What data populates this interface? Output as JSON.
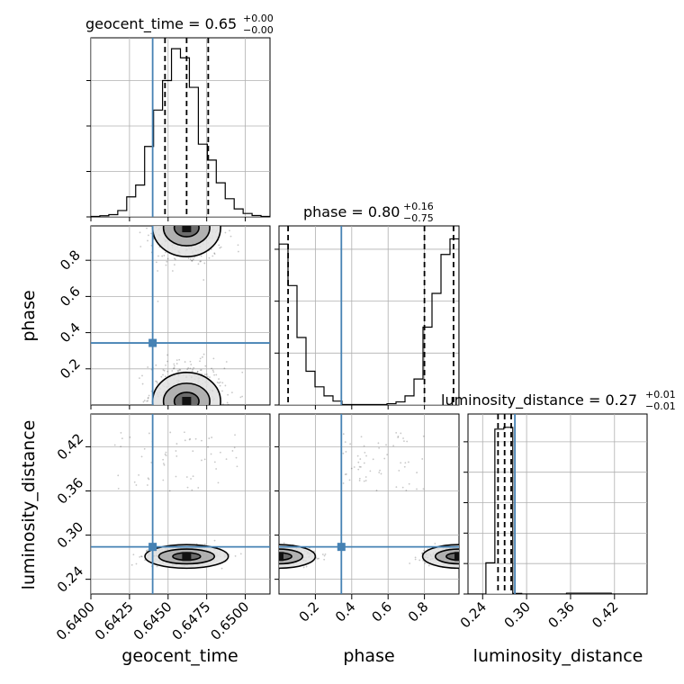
{
  "chart_data": {
    "type": "corner",
    "params": [
      "geocent_time",
      "phase",
      "luminosity_distance"
    ],
    "axis_labels": {
      "geocent_time": "geocent_time",
      "phase": "phase",
      "luminosity_distance": "luminosity_distance"
    },
    "titles": [
      {
        "param": "geocent_time",
        "text": "geocent_time = 0.65",
        "plus": "+0.00",
        "minus": "−0.00"
      },
      {
        "param": "phase",
        "text": "phase = 0.80",
        "plus": "+0.16",
        "minus": "−0.75"
      },
      {
        "param": "luminosity_distance",
        "text": "luminosity_distance = 0.27",
        "plus": "+0.01",
        "minus": "−0.01"
      }
    ],
    "ranges": {
      "geocent_time": [
        0.64,
        0.6516
      ],
      "phase": [
        0.0,
        0.99
      ],
      "luminosity_distance": [
        0.22,
        0.4645
      ]
    },
    "ticks": {
      "geocent_time": [
        "0.6400",
        "0.6425",
        "0.6450",
        "0.6475",
        "0.6500"
      ],
      "phase": [
        "0.2",
        "0.4",
        "0.6",
        "0.8"
      ],
      "luminosity_distance": [
        "0.24",
        "0.30",
        "0.36",
        "0.42"
      ]
    },
    "truths": {
      "geocent_time": 0.644,
      "phase": 0.343,
      "luminosity_distance": 0.284
    },
    "quantiles": {
      "geocent_time": [
        0.6448,
        0.6462,
        0.6476
      ],
      "phase": [
        0.05,
        0.8,
        0.96
      ],
      "luminosity_distance": [
        0.261,
        0.27,
        0.279
      ]
    },
    "histograms": {
      "geocent_time": {
        "edges": [
          0.64,
          0.64058,
          0.64116,
          0.64174,
          0.64232,
          0.6429,
          0.64348,
          0.64406,
          0.64464,
          0.64522,
          0.6458,
          0.64638,
          0.64696,
          0.64754,
          0.64812,
          0.6487,
          0.64928,
          0.64986,
          0.65044,
          0.65102,
          0.6516
        ],
        "counts": [
          0.2,
          0.5,
          1.0,
          2.8,
          8.8,
          14.0,
          31.0,
          47.0,
          60.0,
          74.0,
          70.0,
          57.0,
          32.0,
          25.0,
          15.0,
          8.0,
          3.5,
          1.5,
          0.6,
          0.2
        ],
        "ymax": 78.8
      },
      "phase": {
        "edges": [
          0.0,
          0.0495,
          0.099,
          0.1485,
          0.198,
          0.2475,
          0.297,
          0.3465,
          0.396,
          0.4455,
          0.495,
          0.5445,
          0.594,
          0.6435,
          0.693,
          0.7425,
          0.792,
          0.8415,
          0.891,
          0.9405,
          0.99
        ],
        "counts": [
          62,
          46,
          26,
          13,
          7,
          3.5,
          1.5,
          0.2,
          0.2,
          0.2,
          0.2,
          0.2,
          0.5,
          1.2,
          3.5,
          10,
          30,
          43,
          58,
          64
        ],
        "ymax": 69
      },
      "luminosity_distance": {
        "edges": [
          0.22,
          0.23223,
          0.24445,
          0.25668,
          0.2689,
          0.28113,
          0.29335,
          0.30558,
          0.3178,
          0.33003,
          0.34225,
          0.35448,
          0.3667,
          0.37893,
          0.39115,
          0.40338,
          0.4156,
          0.42783,
          0.44005,
          0.45228,
          0.4645
        ],
        "counts": [
          0,
          0,
          40.9,
          216.6,
          219.0,
          0.7,
          0,
          0,
          0,
          0,
          0,
          1.0,
          1.0,
          1.0,
          1.0,
          1.0,
          0,
          0,
          0,
          0
        ],
        "ymax": 236.5
      }
    }
  }
}
